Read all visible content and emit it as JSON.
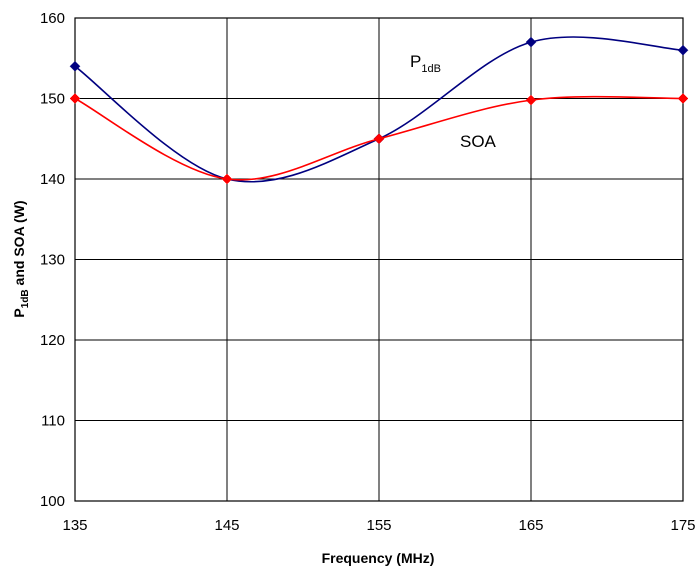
{
  "chart_data": {
    "type": "line",
    "xlabel": "Frequency (MHz)",
    "ylabel": {
      "main": "P",
      "sub": "1dB",
      "rest": " and SOA (W)"
    },
    "xlim": [
      135,
      175
    ],
    "ylim": [
      100,
      160
    ],
    "x_ticks": [
      135,
      145,
      155,
      165,
      175
    ],
    "y_ticks": [
      100,
      110,
      120,
      130,
      140,
      150,
      160
    ],
    "grid": true,
    "series": [
      {
        "label_main": "P",
        "label_sub": "1dB",
        "color": "#000080",
        "marker_color": "#000080",
        "marker": "diamond",
        "points": [
          {
            "x": 135,
            "y": 154
          },
          {
            "x": 145,
            "y": 140
          },
          {
            "x": 155,
            "y": 145
          },
          {
            "x": 165,
            "y": 157
          },
          {
            "x": 175,
            "y": 156
          }
        ]
      },
      {
        "label_main": "SOA",
        "label_sub": "",
        "color": "#ff0000",
        "marker_color": "#ff0000",
        "marker": "diamond",
        "points": [
          {
            "x": 135,
            "y": 150
          },
          {
            "x": 145,
            "y": 140
          },
          {
            "x": 155,
            "y": 145
          },
          {
            "x": 165,
            "y": 149.8
          },
          {
            "x": 175,
            "y": 150
          }
        ]
      }
    ]
  }
}
